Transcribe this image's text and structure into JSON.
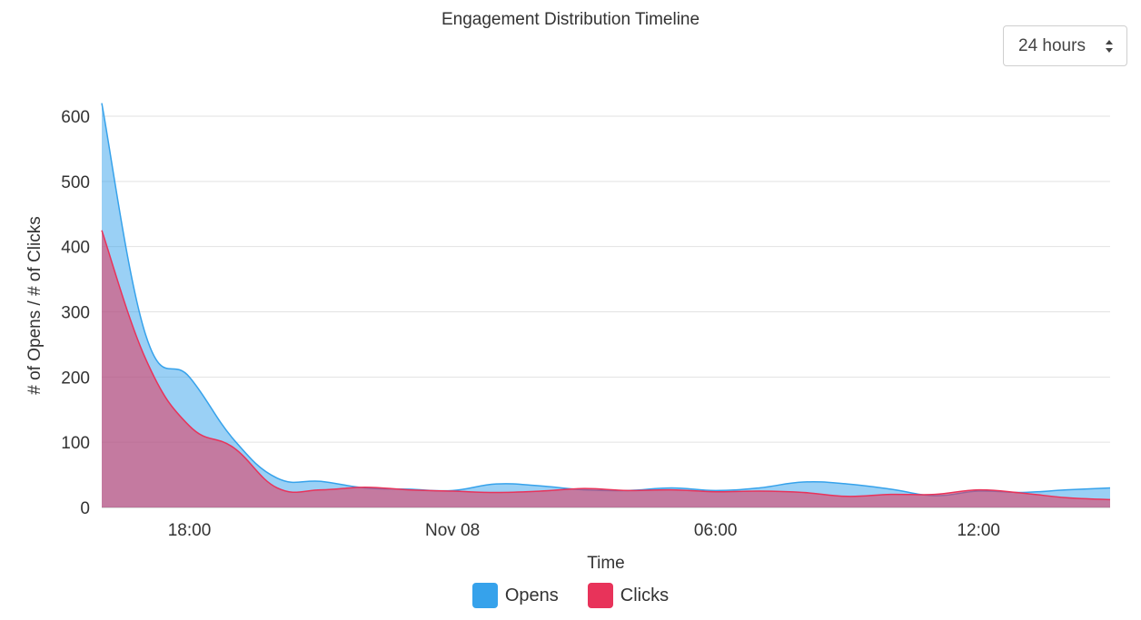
{
  "chart_data": {
    "type": "area",
    "title": "Engagement Distribution Timeline",
    "xlabel": "Time",
    "ylabel": "# of Opens / # of Clicks",
    "ylim": [
      0,
      600
    ],
    "yticks": [
      0,
      100,
      200,
      300,
      400,
      500,
      600
    ],
    "xticks": [
      {
        "label": "18:00",
        "hour": 18
      },
      {
        "label": "Nov 08",
        "hour": 24
      },
      {
        "label": "06:00",
        "hour": 30
      },
      {
        "label": "12:00",
        "hour": 36
      }
    ],
    "xlim_hours": [
      16,
      39
    ],
    "grid": true,
    "legend_position": "bottom",
    "series": [
      {
        "name": "Opens",
        "color": "#36a2eb",
        "hours": [
          16,
          17,
          18,
          19,
          20,
          21,
          22,
          23,
          24,
          25,
          26,
          27,
          28,
          29,
          30,
          31,
          32,
          33,
          34,
          35,
          36,
          37,
          38,
          39
        ],
        "values": [
          620,
          265,
          200,
          105,
          45,
          40,
          30,
          28,
          26,
          36,
          33,
          27,
          26,
          30,
          26,
          30,
          39,
          36,
          28,
          18,
          25,
          23,
          27,
          30
        ]
      },
      {
        "name": "Clicks",
        "color": "#e8335a",
        "hours": [
          16,
          17,
          18,
          19,
          20,
          21,
          22,
          23,
          24,
          25,
          26,
          27,
          28,
          29,
          30,
          31,
          32,
          33,
          34,
          35,
          36,
          37,
          38,
          39
        ],
        "values": [
          425,
          228,
          125,
          92,
          30,
          27,
          31,
          27,
          25,
          23,
          25,
          29,
          26,
          27,
          24,
          25,
          23,
          17,
          20,
          20,
          27,
          22,
          15,
          12
        ]
      }
    ]
  },
  "controls": {
    "range_value": "24 hours"
  }
}
